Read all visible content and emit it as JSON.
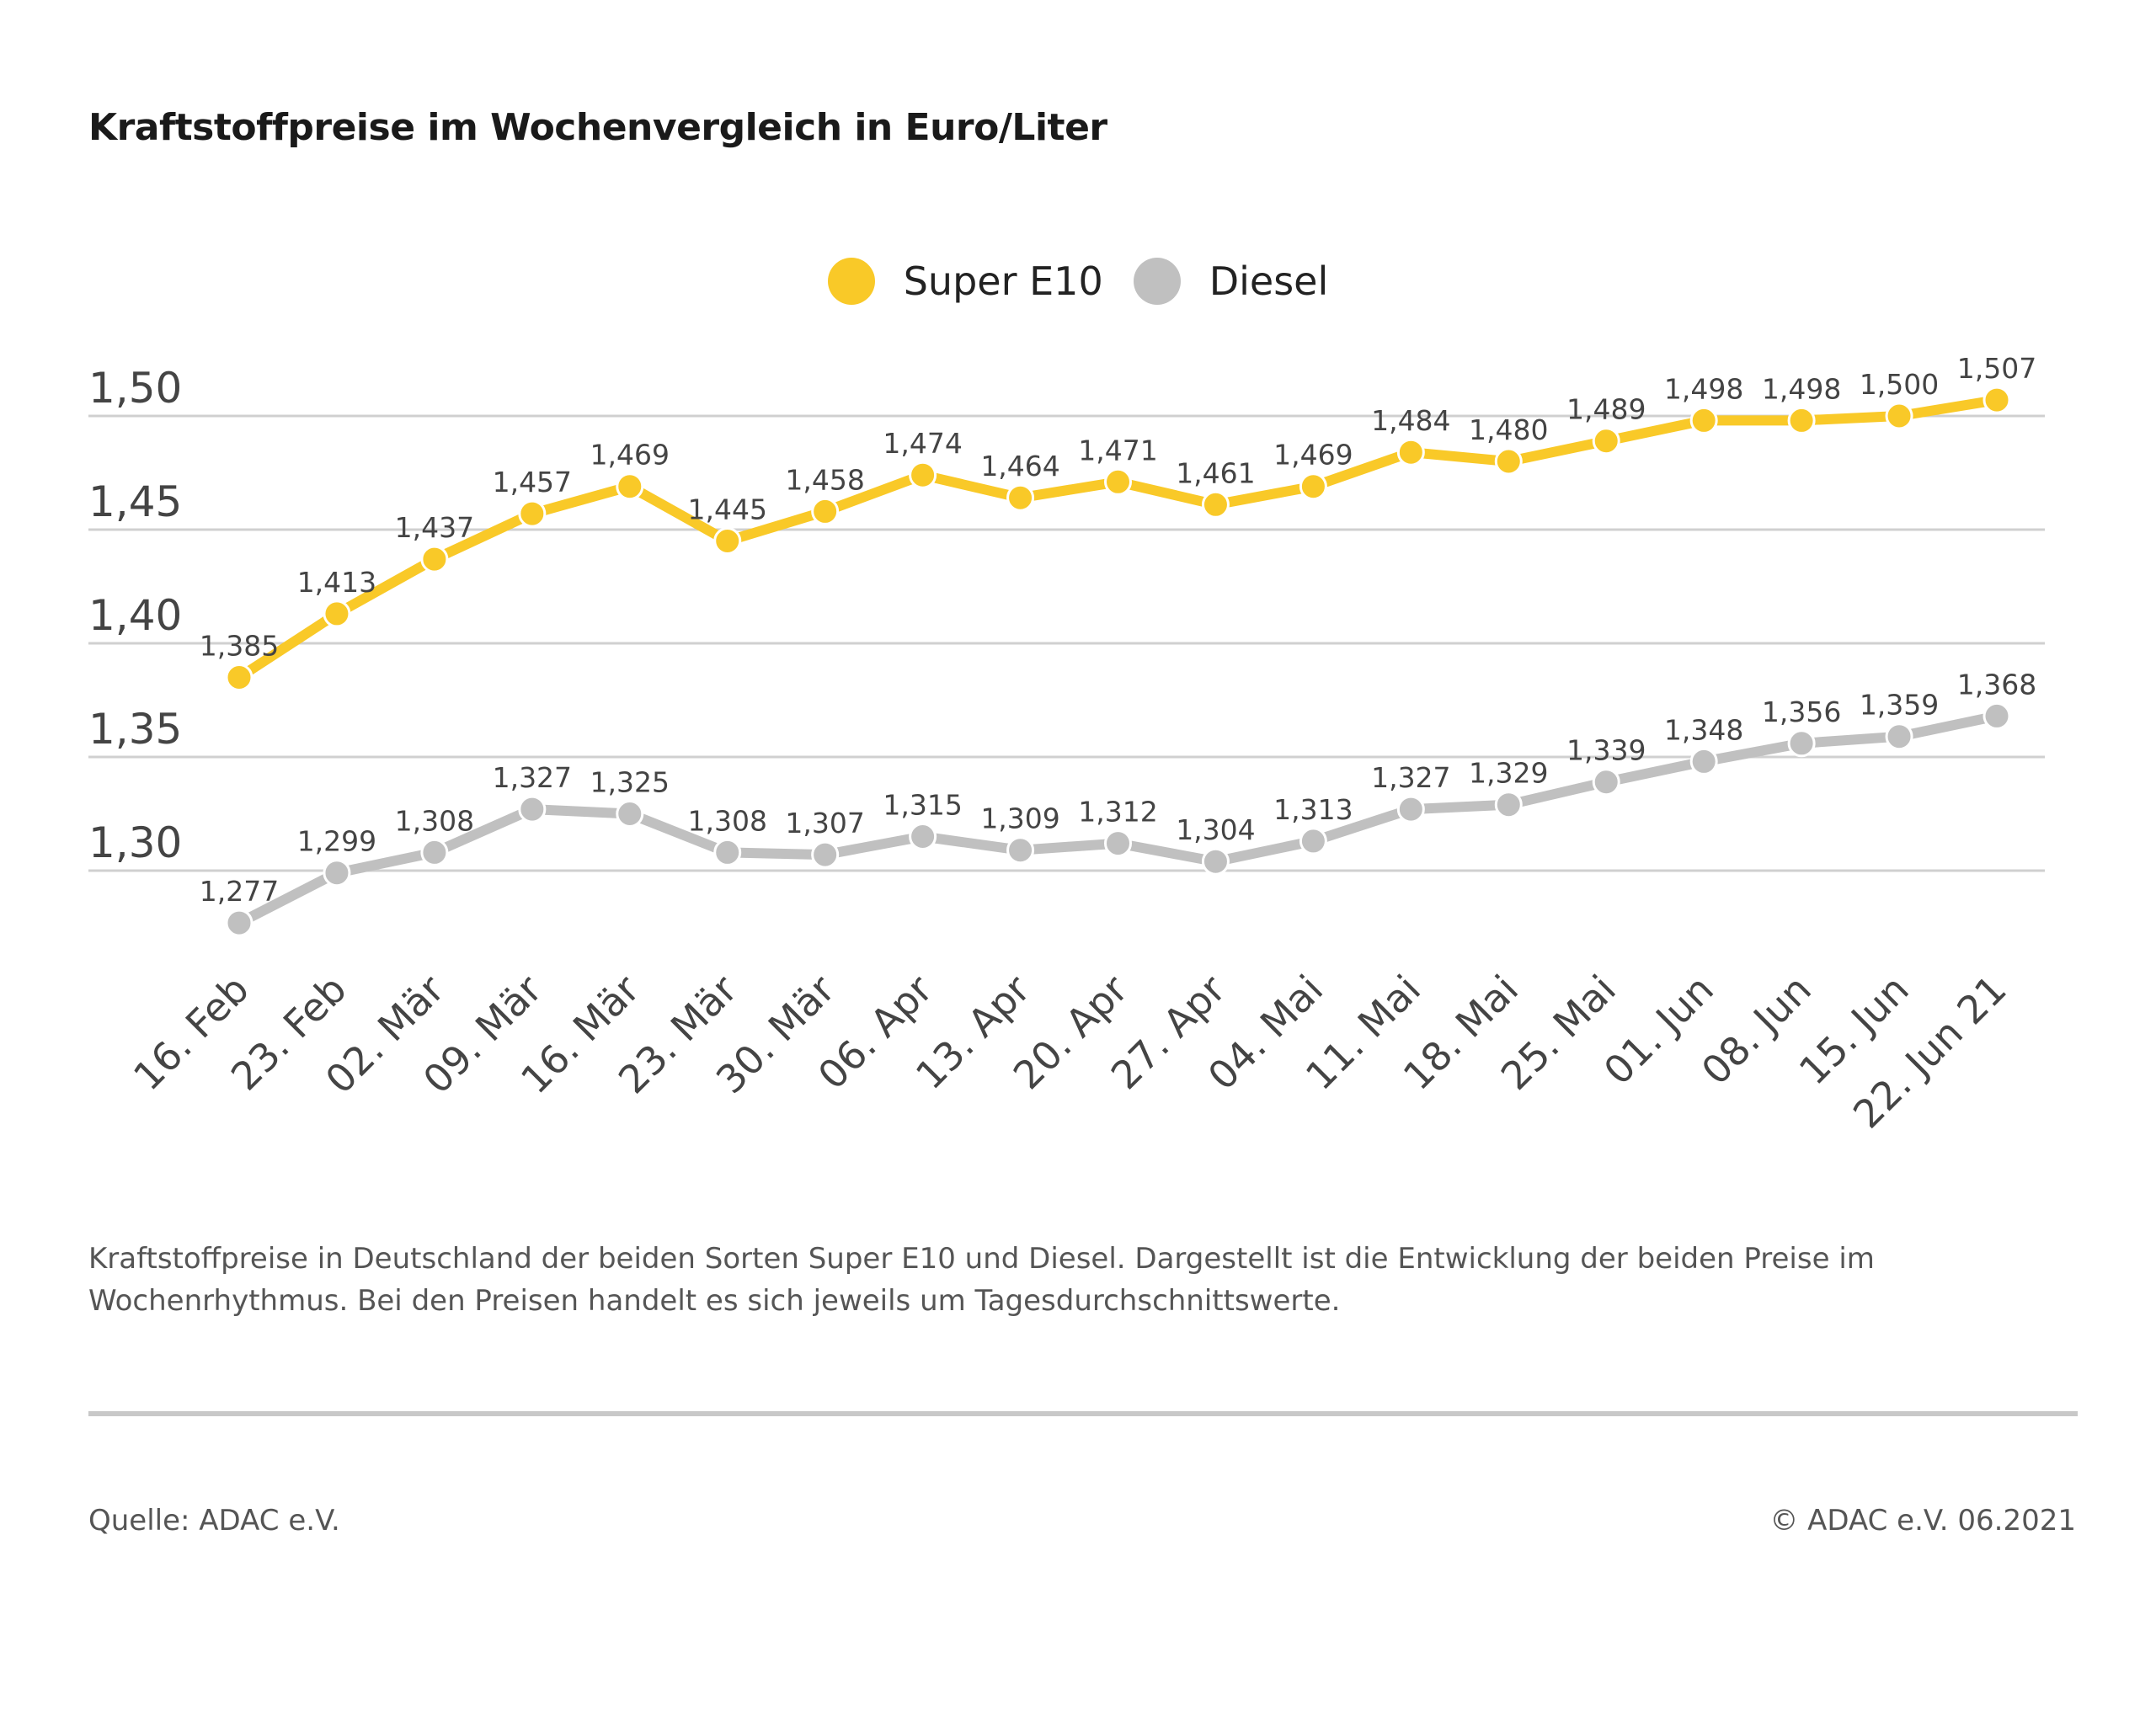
{
  "title": "Kraftstoffpreise im Wochenvergleich in Euro/Liter",
  "description": "Kraftstoffpreise in Deutschland der beiden Sorten Super E10 und Diesel. Dargestellt ist die Entwicklung der beiden Preise im Wochenrhythmus. Bei den Preisen handelt es sich jeweils um Tagesdurchschnittswerte.",
  "footer": {
    "source": "Quelle: ADAC e.V.",
    "copyright": "© ADAC e.V. 06.2021"
  },
  "chart_data": {
    "type": "line",
    "title": "Kraftstoffpreise im Wochenvergleich in Euro/Liter",
    "categories": [
      "16. Feb",
      "23. Feb",
      "02. Mär",
      "09. Mär",
      "16. Mär",
      "23. Mär",
      "30. Mär",
      "06. Apr",
      "13. Apr",
      "20. Apr",
      "27. Apr",
      "04. Mai",
      "11. Mai",
      "18. Mai",
      "25. Mai",
      "01. Jun",
      "08. Jun",
      "15. Jun",
      "22. Jun 21"
    ],
    "series": [
      {
        "name": "Super E10",
        "color": "#f9c928",
        "values": [
          1.385,
          1.413,
          1.437,
          1.457,
          1.469,
          1.445,
          1.458,
          1.474,
          1.464,
          1.471,
          1.461,
          1.469,
          1.484,
          1.48,
          1.489,
          1.498,
          1.498,
          1.5,
          1.507
        ],
        "labels": [
          "1,385",
          "1,413",
          "1,437",
          "1,457",
          "1,469",
          "1,445",
          "1,458",
          "1,474",
          "1,464",
          "1,471",
          "1,461",
          "1,469",
          "1,484",
          "1,480",
          "1,489",
          "1,498",
          "1,498",
          "1,500",
          "1,507"
        ]
      },
      {
        "name": "Diesel",
        "color": "#c0c0c0",
        "values": [
          1.277,
          1.299,
          1.308,
          1.327,
          1.325,
          1.308,
          1.307,
          1.315,
          1.309,
          1.312,
          1.304,
          1.313,
          1.327,
          1.329,
          1.339,
          1.348,
          1.356,
          1.359,
          1.368
        ],
        "labels": [
          "1,277",
          "1,299",
          "1,308",
          "1,327",
          "1,325",
          "1,308",
          "1,307",
          "1,315",
          "1,309",
          "1,312",
          "1,304",
          "1,313",
          "1,327",
          "1,329",
          "1,339",
          "1,348",
          "1,356",
          "1,359",
          "1,368"
        ]
      }
    ],
    "yticks": [
      1.3,
      1.35,
      1.4,
      1.45,
      1.5
    ],
    "ytick_labels": [
      "1,30",
      "1,35",
      "1,40",
      "1,45",
      "1,50"
    ],
    "xlabel": "",
    "ylabel": "",
    "grid": true,
    "legend_position": "top-center"
  }
}
